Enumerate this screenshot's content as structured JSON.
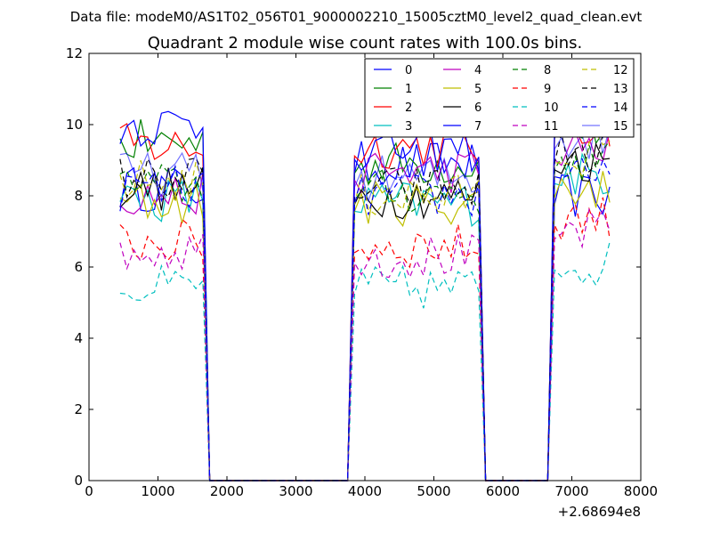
{
  "chart_data": {
    "type": "line",
    "suptitle": "Data file: modeM0/AS1T02_056T01_9000002210_15005cztM0_level2_quad_clean.evt",
    "title": "Quadrant 2 module wise count rates with 100.0s bins.",
    "xlabel": "",
    "ylabel": "",
    "x_offset_label": "+2.68694e8",
    "xlim": [
      0,
      8000
    ],
    "ylim": [
      0,
      12
    ],
    "xticks": [
      0,
      1000,
      2000,
      3000,
      4000,
      5000,
      6000,
      7000,
      8000
    ],
    "yticks": [
      0,
      2,
      4,
      6,
      8,
      10,
      12
    ],
    "xtick_labels": [
      "0",
      "1000",
      "2000",
      "3000",
      "4000",
      "5000",
      "6000",
      "7000",
      "8000"
    ],
    "ytick_labels": [
      "0",
      "2",
      "4",
      "6",
      "8",
      "10",
      "12"
    ],
    "grid": false,
    "legend_position": "upper-right",
    "legend_columns": 4,
    "bin_width": 100,
    "x_start": 450,
    "segments": [
      {
        "from": 450,
        "to": 1650
      },
      {
        "from": 3850,
        "to": 5650
      },
      {
        "from": 6750,
        "to": 7550
      }
    ],
    "series": [
      {
        "name": "0",
        "color": "#0000ff",
        "style": "solid",
        "levels": [
          8.2,
          8.9,
          8.0
        ]
      },
      {
        "name": "1",
        "color": "#008000",
        "style": "solid",
        "levels": [
          9.5,
          8.9,
          9.9
        ]
      },
      {
        "name": "2",
        "color": "#ff0000",
        "style": "solid",
        "levels": [
          9.4,
          9.4,
          10.0
        ]
      },
      {
        "name": "3",
        "color": "#00bfbf",
        "style": "solid",
        "levels": [
          7.9,
          7.8,
          8.6
        ]
      },
      {
        "name": "4",
        "color": "#bf00bf",
        "style": "solid",
        "levels": [
          8.0,
          8.7,
          9.3
        ]
      },
      {
        "name": "5",
        "color": "#bfbf00",
        "style": "solid",
        "levels": [
          7.8,
          7.8,
          8.2
        ]
      },
      {
        "name": "6",
        "color": "#000000",
        "style": "solid",
        "levels": [
          8.2,
          8.0,
          9.0
        ]
      },
      {
        "name": "7",
        "color": "#0000ff",
        "style": "solid",
        "levels": [
          10.0,
          9.3,
          10.2
        ]
      },
      {
        "name": "8",
        "color": "#008000",
        "style": "dashed",
        "levels": [
          8.3,
          8.1,
          9.0
        ]
      },
      {
        "name": "9",
        "color": "#ff0000",
        "style": "dashed",
        "levels": [
          6.7,
          6.6,
          7.4
        ]
      },
      {
        "name": "10",
        "color": "#00bfbf",
        "style": "dashed",
        "levels": [
          5.4,
          5.4,
          6.1
        ]
      },
      {
        "name": "11",
        "color": "#bf00bf",
        "style": "dashed",
        "levels": [
          6.5,
          6.3,
          7.0
        ]
      },
      {
        "name": "12",
        "color": "#bfbf00",
        "style": "dashed",
        "levels": [
          8.4,
          8.0,
          9.2
        ]
      },
      {
        "name": "13",
        "color": "#000000",
        "style": "dashed",
        "levels": [
          8.5,
          8.2,
          9.2
        ]
      },
      {
        "name": "14",
        "color": "#0000ff",
        "style": "dashed",
        "levels": [
          8.2,
          8.0,
          8.8
        ]
      },
      {
        "name": "15",
        "color": "#0000ff",
        "style": "solid",
        "alpha": 0.55,
        "levels": [
          8.6,
          8.5,
          9.6
        ]
      }
    ]
  }
}
